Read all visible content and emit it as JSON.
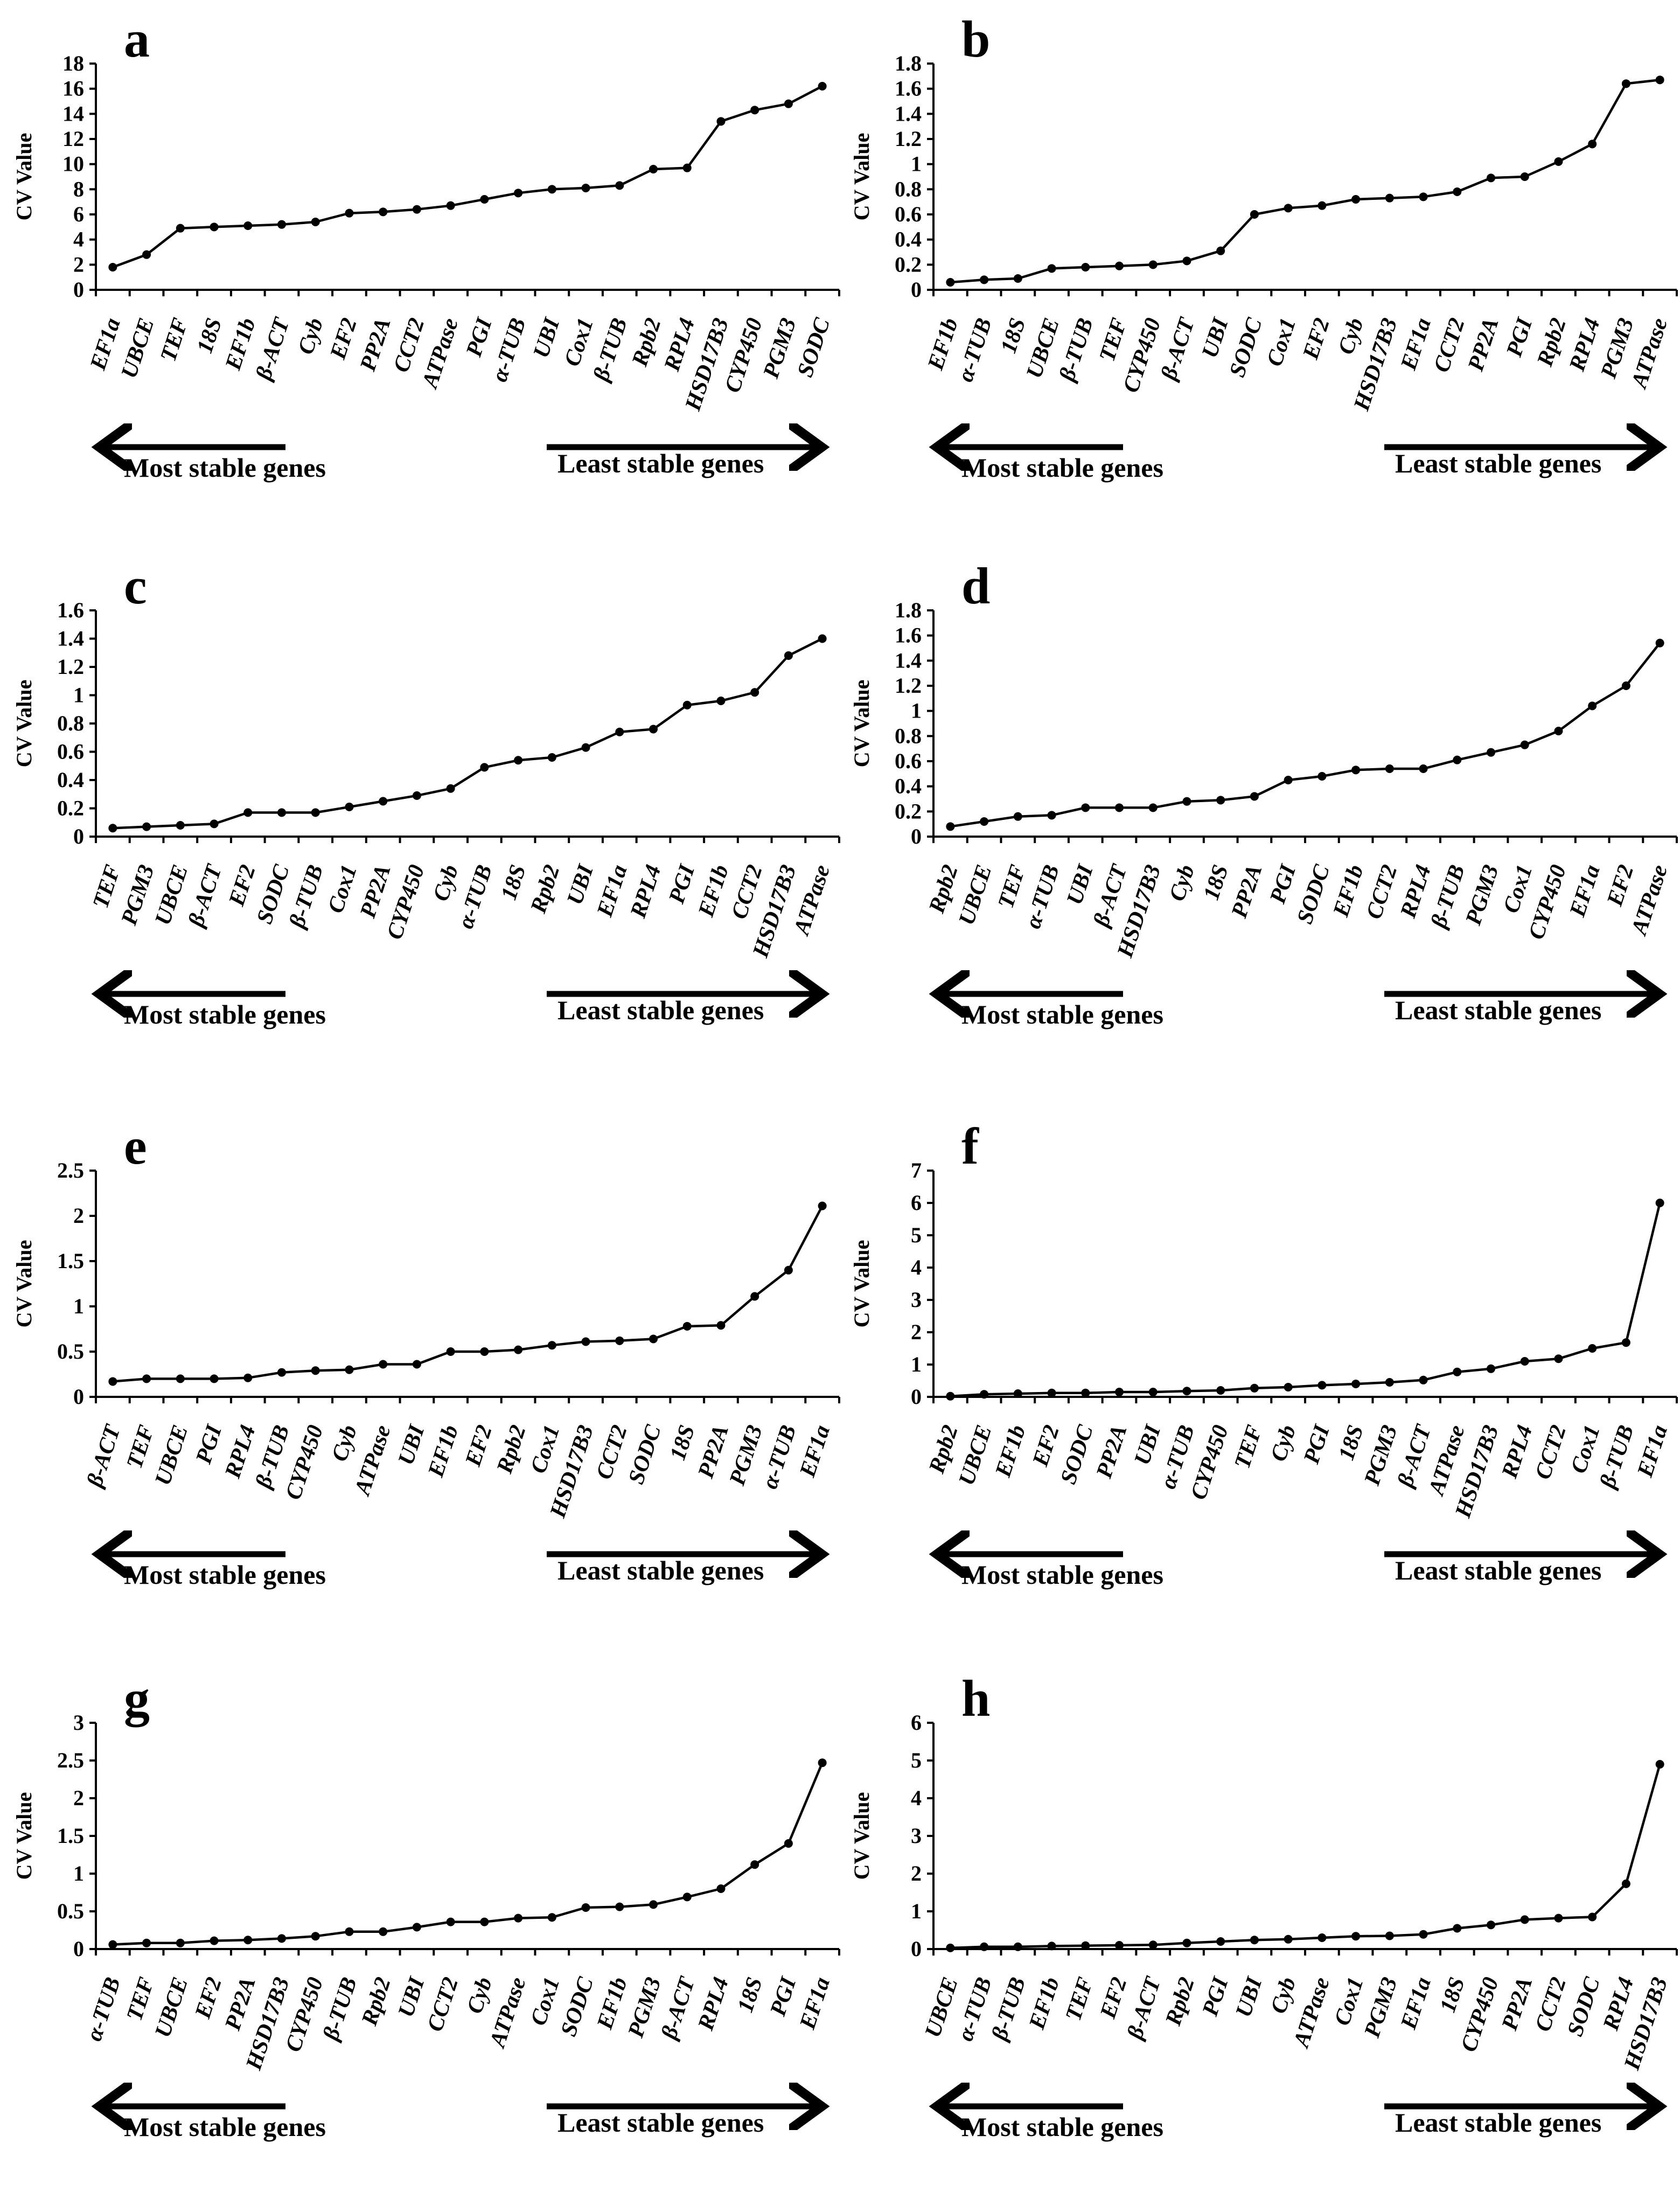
{
  "figure": {
    "axis_label": "CV Value",
    "arrows": {
      "left": "Most stable genes",
      "right": "Least stable genes"
    }
  },
  "chart_data": [
    {
      "panel": "a",
      "type": "line",
      "ylabel": "CV Value",
      "ylim": [
        0,
        18
      ],
      "yticks": [
        "0",
        "2",
        "4",
        "6",
        "8",
        "10",
        "12",
        "14",
        "16",
        "18"
      ],
      "categories": [
        "EF1a",
        "UBCE",
        "TEF",
        "18S",
        "EF1b",
        "β-ACT",
        "Cyb",
        "EF2",
        "PP2A",
        "CCT2",
        "ATPase",
        "PGI",
        "α-TUB",
        "UBI",
        "Cox1",
        "β-TUB",
        "Rpb2",
        "RPL4",
        "HSD17B3",
        "CYP450",
        "PGM3",
        "SODC"
      ],
      "values": [
        1.8,
        2.8,
        4.9,
        5.0,
        5.1,
        5.2,
        5.4,
        6.1,
        6.2,
        6.4,
        6.7,
        7.2,
        7.7,
        8.0,
        8.1,
        8.3,
        9.6,
        9.7,
        13.4,
        14.3,
        14.8,
        16.2
      ]
    },
    {
      "panel": "b",
      "type": "line",
      "ylabel": "CV Value",
      "ylim": [
        0,
        1.8
      ],
      "yticks": [
        "0",
        "0.2",
        "0.4",
        "0.6",
        "0.8",
        "1",
        "1.2",
        "1.4",
        "1.6",
        "1.8"
      ],
      "categories": [
        "EF1b",
        "α-TUB",
        "18S",
        "UBCE",
        "β-TUB",
        "TEF",
        "CYP450",
        "β-ACT",
        "UBI",
        "SODC",
        "Cox1",
        "EF2",
        "Cyb",
        "HSD17B3",
        "EF1a",
        "CCT2",
        "PP2A",
        "PGI",
        "Rpb2",
        "RPL4",
        "PGM3",
        "ATPase"
      ],
      "values": [
        0.06,
        0.08,
        0.09,
        0.17,
        0.18,
        0.19,
        0.2,
        0.23,
        0.31,
        0.6,
        0.65,
        0.67,
        0.72,
        0.73,
        0.74,
        0.78,
        0.89,
        0.9,
        1.02,
        1.16,
        1.64,
        1.67
      ]
    },
    {
      "panel": "c",
      "type": "line",
      "ylabel": "CV Value",
      "ylim": [
        0,
        1.6
      ],
      "yticks": [
        "0",
        "0.2",
        "0.4",
        "0.6",
        "0.8",
        "1",
        "1.2",
        "1.4",
        "1.6"
      ],
      "categories": [
        "TEF",
        "PGM3",
        "UBCE",
        "β-ACT",
        "EF2",
        "SODC",
        "β-TUB",
        "Cox1",
        "PP2A",
        "CYP450",
        "Cyb",
        "α-TUB",
        "18S",
        "Rpb2",
        "UBI",
        "EF1a",
        "RPL4",
        "PGI",
        "EF1b",
        "CCT2",
        "HSD17B3",
        "ATPase"
      ],
      "values": [
        0.06,
        0.07,
        0.08,
        0.09,
        0.17,
        0.17,
        0.17,
        0.21,
        0.25,
        0.29,
        0.34,
        0.49,
        0.54,
        0.56,
        0.63,
        0.74,
        0.76,
        0.93,
        0.96,
        1.02,
        1.28,
        1.4
      ]
    },
    {
      "panel": "d",
      "type": "line",
      "ylabel": "CV Value",
      "ylim": [
        0,
        1.8
      ],
      "yticks": [
        "0",
        "0.2",
        "0.4",
        "0.6",
        "0.8",
        "1",
        "1.2",
        "1.4",
        "1.6",
        "1.8"
      ],
      "categories": [
        "Rpb2",
        "UBCE",
        "TEF",
        "α-TUB",
        "UBI",
        "β-ACT",
        "HSD17B3",
        "Cyb",
        "18S",
        "PP2A",
        "PGI",
        "SODC",
        "EF1b",
        "CCT2",
        "RPL4",
        "β-TUB",
        "PGM3",
        "Cox1",
        "CYP450",
        "EF1a",
        "EF2",
        "ATPase"
      ],
      "values": [
        0.08,
        0.12,
        0.16,
        0.17,
        0.23,
        0.23,
        0.23,
        0.28,
        0.29,
        0.32,
        0.45,
        0.48,
        0.53,
        0.54,
        0.54,
        0.61,
        0.67,
        0.73,
        0.84,
        1.04,
        1.2,
        1.54
      ]
    },
    {
      "panel": "e",
      "type": "line",
      "ylabel": "CV Value",
      "ylim": [
        0,
        2.5
      ],
      "yticks": [
        "0",
        "0.5",
        "1",
        "1.5",
        "2",
        "2.5"
      ],
      "categories": [
        "β-ACT",
        "TEF",
        "UBCE",
        "PGI",
        "RPL4",
        "β-TUB",
        "CYP450",
        "Cyb",
        "ATPase",
        "UBI",
        "EF1b",
        "EF2",
        "Rpb2",
        "Cox1",
        "HSD17B3",
        "CCT2",
        "SODC",
        "18S",
        "PP2A",
        "PGM3",
        "α-TUB",
        "EF1a"
      ],
      "values": [
        0.17,
        0.2,
        0.2,
        0.2,
        0.21,
        0.27,
        0.29,
        0.3,
        0.36,
        0.36,
        0.5,
        0.5,
        0.52,
        0.57,
        0.61,
        0.62,
        0.64,
        0.78,
        0.79,
        1.11,
        1.4,
        2.11
      ]
    },
    {
      "panel": "f",
      "type": "line",
      "ylabel": "CV Value",
      "ylim": [
        0,
        7
      ],
      "yticks": [
        "0",
        "1",
        "2",
        "3",
        "4",
        "5",
        "6",
        "7"
      ],
      "categories": [
        "Rpb2",
        "UBCE",
        "EF1b",
        "EF2",
        "SODC",
        "PP2A",
        "UBI",
        "α-TUB",
        "CYP450",
        "TEF",
        "Cyb",
        "PGI",
        "18S",
        "PGM3",
        "β-ACT",
        "ATPase",
        "HSD17B3",
        "RPL4",
        "CCT2",
        "Cox1",
        "β-TUB",
        "EF1a"
      ],
      "values": [
        0.02,
        0.08,
        0.1,
        0.12,
        0.12,
        0.15,
        0.15,
        0.18,
        0.2,
        0.27,
        0.3,
        0.36,
        0.4,
        0.45,
        0.52,
        0.77,
        0.87,
        1.1,
        1.18,
        1.5,
        1.68,
        6.0
      ]
    },
    {
      "panel": "g",
      "type": "line",
      "ylabel": "CV Value",
      "ylim": [
        0,
        3
      ],
      "yticks": [
        "0",
        "0.5",
        "1",
        "1.5",
        "2",
        "2.5",
        "3"
      ],
      "categories": [
        "α-TUB",
        "TEF",
        "UBCE",
        "EF2",
        "PP2A",
        "HSD17B3",
        "CYP450",
        "β-TUB",
        "Rpb2",
        "UBI",
        "CCT2",
        "Cyb",
        "ATPase",
        "Cox1",
        "SODC",
        "EF1b",
        "PGM3",
        "β-ACT",
        "RPL4",
        "18S",
        "PGI",
        "EF1a"
      ],
      "values": [
        0.06,
        0.08,
        0.08,
        0.11,
        0.12,
        0.14,
        0.17,
        0.23,
        0.23,
        0.29,
        0.36,
        0.36,
        0.41,
        0.42,
        0.55,
        0.56,
        0.59,
        0.69,
        0.8,
        1.12,
        1.4,
        2.47
      ]
    },
    {
      "panel": "h",
      "type": "line",
      "ylabel": "CV Value",
      "ylim": [
        0,
        6
      ],
      "yticks": [
        "0",
        "1",
        "2",
        "3",
        "4",
        "5",
        "6"
      ],
      "categories": [
        "UBCE",
        "α-TUB",
        "β-TUB",
        "EF1b",
        "TEF",
        "EF2",
        "β-ACT",
        "Rpb2",
        "PGI",
        "UBI",
        "Cyb",
        "ATPase",
        "Cox1",
        "PGM3",
        "EF1a",
        "18S",
        "CYP450",
        "PP2A",
        "CCT2",
        "SODC",
        "RPL4",
        "HSD17B3"
      ],
      "values": [
        0.03,
        0.06,
        0.06,
        0.08,
        0.09,
        0.1,
        0.11,
        0.16,
        0.2,
        0.24,
        0.26,
        0.3,
        0.34,
        0.35,
        0.39,
        0.55,
        0.64,
        0.78,
        0.82,
        0.85,
        1.73,
        4.9
      ]
    }
  ]
}
